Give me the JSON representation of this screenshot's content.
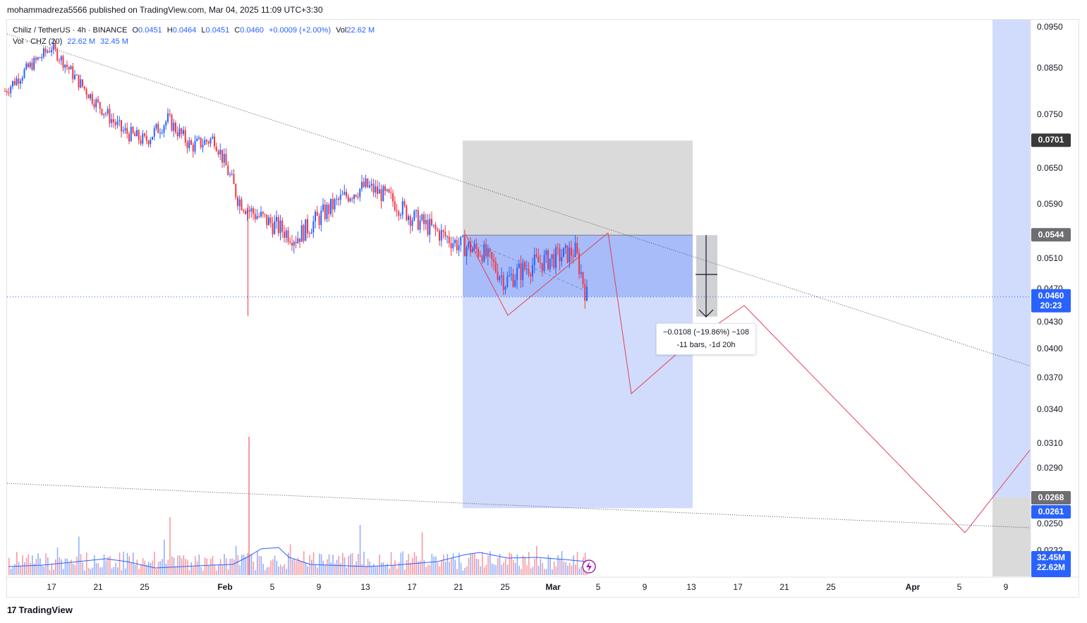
{
  "header": {
    "published": "mohammadreza5566 published on TradingView.com, Mar 04, 2025 11:09 UTC+3:30"
  },
  "legend": {
    "symbol": "Chiliz / TetherUS · 4h · BINANCE",
    "o_label": "O",
    "o_val": "0.0451",
    "h_label": "H",
    "h_val": "0.0464",
    "l_label": "L",
    "l_val": "0.0451",
    "c_label": "C",
    "c_val": "0.0460",
    "change": "+0.0009 (+2.00%)",
    "vol_label": "Vol",
    "vol_val": "22.62 M",
    "vol_indicator": "Vol · CHZ (20)",
    "vol_now": "22.62 M",
    "vol_ma": "32.45 M"
  },
  "measure_tooltip": {
    "line1": "−0.0108 (−19.86%) −108",
    "line2": "-11 bars, -1d 20h"
  },
  "price_badges": {
    "top_box": "0.0701",
    "mid_box": "0.0544",
    "last_price": "0.0460",
    "countdown": "20:23",
    "lower_box": "0.0268",
    "support": "0.0261",
    "vol_ma": "32.45M",
    "vol_now": "22.62M"
  },
  "footer": {
    "brand": "TradingView",
    "logo": "17"
  },
  "colors": {
    "up": "#2962ff",
    "down": "#f23645",
    "projection": "#e0405a",
    "target_zone": "#d1dcfc",
    "entry_zone": "#a7bcf9",
    "stop_zone": "#dadadb"
  },
  "chart_data": {
    "type": "line",
    "title": "Chiliz / TetherUS · 4h · BINANCE",
    "y_ticks": [
      "0.0950",
      "0.0850",
      "0.0750",
      "0.0650",
      "0.0590",
      "0.0510",
      "0.0470",
      "0.0430",
      "0.0400",
      "0.0370",
      "0.0340",
      "0.0310",
      "0.0290",
      "0.0250",
      "0.0232"
    ],
    "x_ticks": [
      "17",
      "21",
      "25",
      "Feb",
      "5",
      "9",
      "13",
      "17",
      "21",
      "25",
      "Mar",
      "5",
      "9",
      "13",
      "17",
      "21",
      "25",
      "Apr",
      "5",
      "9"
    ],
    "ylim": [
      0.0232,
      0.095
    ],
    "series": [
      {
        "name": "Chiliz / TetherUS",
        "x": [
          "Jan 13",
          "Jan 15",
          "Jan 17",
          "Jan 19",
          "Jan 21",
          "Jan 23",
          "Jan 25",
          "Jan 27",
          "Jan 29",
          "Jan 31",
          "Feb 2",
          "Feb 3",
          "Feb 5",
          "Feb 7",
          "Feb 9",
          "Feb 11",
          "Feb 13",
          "Feb 15",
          "Feb 17",
          "Feb 19",
          "Feb 21",
          "Feb 23",
          "Feb 25",
          "Feb 27",
          "Mar 1",
          "Mar 3",
          "Mar 4"
        ],
        "values": [
          0.08,
          0.085,
          0.09,
          0.083,
          0.077,
          0.072,
          0.07,
          0.074,
          0.069,
          0.0705,
          0.06,
          0.058,
          0.056,
          0.054,
          0.057,
          0.06,
          0.062,
          0.06,
          0.057,
          0.055,
          0.053,
          0.052,
          0.048,
          0.05,
          0.051,
          0.052,
          0.046
        ]
      },
      {
        "name": "Projection",
        "x": [
          "Mar 4",
          "Mar 6",
          "Mar 8",
          "Mar 13",
          "Mar 17",
          "Apr 5",
          "Apr 12"
        ],
        "values": [
          0.048,
          0.054,
          0.036,
          0.041,
          0.044,
          0.0245,
          0.0305
        ]
      }
    ],
    "position": {
      "stop": 0.0701,
      "entry": 0.0544,
      "target": 0.0261,
      "last": 0.046
    },
    "volume": {
      "current": "22.62M",
      "ma20": "32.45M"
    }
  }
}
